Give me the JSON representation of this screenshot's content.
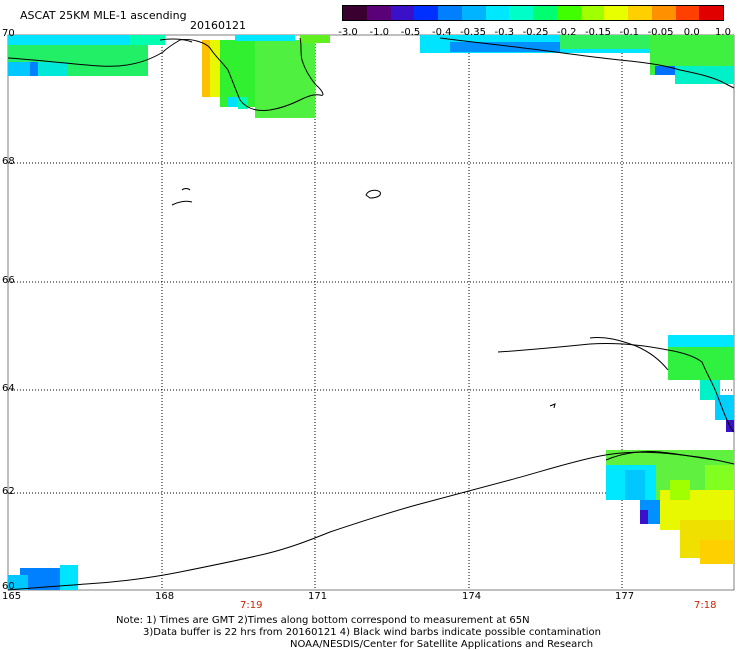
{
  "header": {
    "title": "ASCAT 25KM MLE-1 ascending",
    "date": "20160121"
  },
  "colorbar": {
    "labels": [
      "-3.0",
      "-1.0",
      "-0.5",
      "-0.4",
      "-0.35",
      "-0.3",
      "-0.25",
      "-0.2",
      "-0.15",
      "-0.1",
      "-0.05",
      "0.0",
      "1.0"
    ],
    "colors": [
      "#3a0030",
      "#5a0078",
      "#3a10c8",
      "#0030ff",
      "#0080ff",
      "#00b4ff",
      "#00e8ff",
      "#00ffc8",
      "#00ff70",
      "#40ff00",
      "#a0ff00",
      "#e8ff00",
      "#ffd000",
      "#ff9000",
      "#ff4000",
      "#e00000"
    ]
  },
  "axes": {
    "lat_labels": [
      "70",
      "68",
      "66",
      "64",
      "62",
      "60"
    ],
    "lon_labels": [
      "165",
      "168",
      "171",
      "174",
      "177"
    ],
    "time_labels": [
      "7:19",
      "7:18"
    ]
  },
  "notes": {
    "line1": "Note: 1) Times are GMT 2)Times along bottom correspond to measurement at 65N",
    "line2": "3)Data buffer is 22 hrs from 20160121 4) Black wind barbs indicate possible contamination",
    "credit": "NOAA/NESDIS/Center for Satellite Applications and Research"
  }
}
